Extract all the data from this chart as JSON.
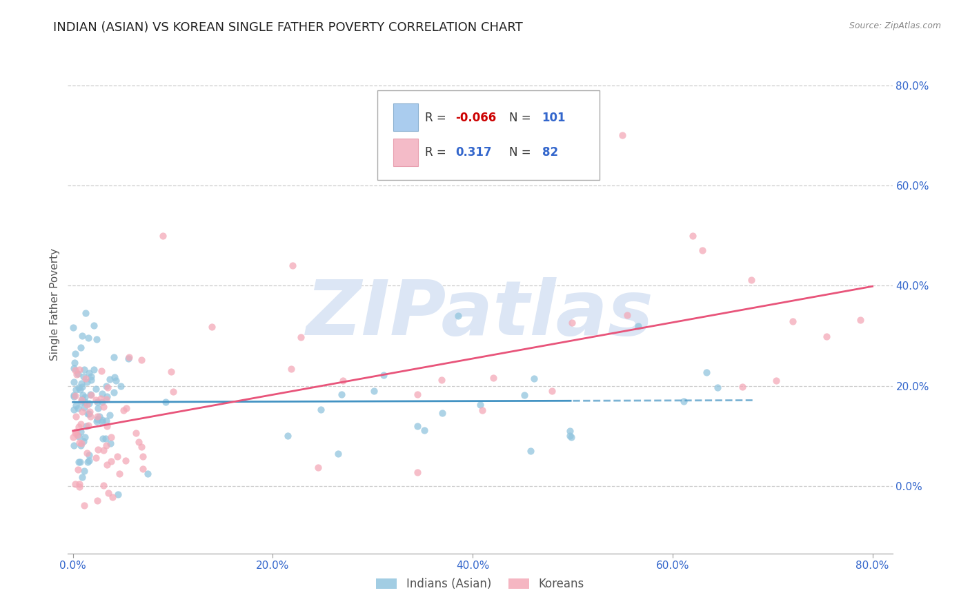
{
  "title": "INDIAN (ASIAN) VS KOREAN SINGLE FATHER POVERTY CORRELATION CHART",
  "source": "Source: ZipAtlas.com",
  "ylabel": "Single Father Poverty",
  "color_indian": "#92c5de",
  "color_korean": "#f4a9b8",
  "color_line_indian": "#4393c3",
  "color_line_korean": "#e8547a",
  "color_title": "#222222",
  "color_axis_values": "#3366cc",
  "watermark_text": "ZIPatlas",
  "watermark_color": "#dce6f5",
  "background_color": "#ffffff",
  "grid_color": "#cccccc",
  "xlim": [
    -0.005,
    0.82
  ],
  "ylim": [
    -0.135,
    0.86
  ],
  "xticks": [
    0.0,
    0.2,
    0.4,
    0.6,
    0.8
  ],
  "yticks": [
    0.0,
    0.2,
    0.4,
    0.6,
    0.8
  ],
  "xtick_labels": [
    "0.0%",
    "20.0%",
    "40.0%",
    "60.0%",
    "80.0%"
  ],
  "ytick_labels": [
    "0.0%",
    "20.0%",
    "40.0%",
    "60.0%",
    "80.0%"
  ],
  "legend_color_r": "#cc0000",
  "legend_color_n": "#3366cc",
  "legend_box_indian": "#aaccee",
  "legend_box_korean": "#f4bbc8"
}
